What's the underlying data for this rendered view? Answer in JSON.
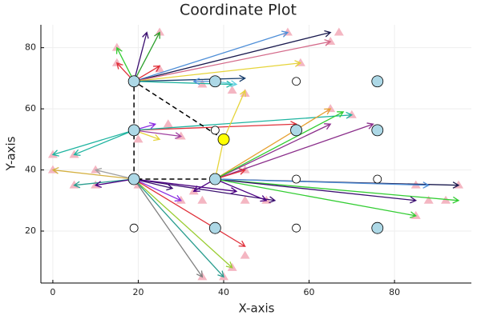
{
  "chart_data": {
    "type": "arrow-plot",
    "title": "Coordinate Plot",
    "x_label": "X-axis",
    "y_label": "Y-axis",
    "xlim": [
      -2.8,
      98
    ],
    "ylim": [
      3,
      87.5
    ],
    "xticks": [
      0,
      20,
      40,
      60,
      80
    ],
    "yticks": [
      20,
      40,
      60,
      80
    ],
    "grid": true,
    "arrows": {
      "x0": [
        19,
        19,
        19,
        19,
        19,
        19,
        19,
        19,
        19,
        19,
        19,
        38,
        38,
        19,
        19,
        19,
        19,
        19,
        19,
        19,
        40,
        40,
        19,
        19,
        19,
        19,
        19,
        19,
        19,
        19,
        19,
        19,
        19,
        19,
        38,
        38,
        38,
        38,
        38,
        38,
        38,
        38,
        38,
        38,
        38,
        38
      ],
      "y0": [
        69,
        69,
        69,
        69,
        69,
        69,
        69,
        69,
        69,
        69,
        69,
        69,
        69,
        53,
        53,
        53,
        53,
        53,
        53,
        53,
        50,
        50,
        37,
        37,
        37,
        37,
        37,
        37,
        37,
        37,
        37,
        37,
        37,
        37,
        37,
        37,
        37,
        37,
        37,
        37,
        37,
        37,
        37,
        37,
        37,
        37
      ],
      "x1": [
        22,
        25,
        15,
        55,
        65,
        65,
        58,
        45,
        42,
        15,
        25,
        33,
        43,
        0,
        5,
        57,
        70,
        24,
        30,
        25,
        45,
        38,
        0,
        5,
        10,
        10,
        45,
        42,
        40,
        35,
        52,
        30,
        28,
        43,
        65,
        65,
        75,
        68,
        45,
        95,
        95,
        85,
        88,
        85,
        50,
        33
      ],
      "y1": [
        85,
        85,
        80,
        85,
        85,
        82,
        75,
        70,
        68,
        75,
        74,
        69,
        68,
        45,
        45,
        55,
        58,
        55,
        51,
        50,
        66,
        37,
        40,
        35,
        35,
        40,
        15,
        8,
        5,
        5,
        30,
        30,
        34,
        33,
        60,
        55,
        55,
        59,
        40,
        35,
        30,
        30,
        35,
        25,
        30,
        33
      ],
      "colors": [
        "#3b0f70",
        "#2ca02c",
        "#32cd32",
        "#4f8fd8",
        "#1a1a4e",
        "#d46a8a",
        "#e6d43a",
        "#163c6b",
        "#1fb4a0",
        "#e0303a",
        "#e0303a",
        "#4f8fd8",
        "#5fd0e0",
        "#1fb4a0",
        "#1fb4a0",
        "#e0303a",
        "#1fb4a0",
        "#8a2be2",
        "#a040a0",
        "#e6d43a",
        "#e6d43a",
        "#e6d43a",
        "#d4b040",
        "#2a9d8f",
        "#4b0082",
        "#a0a0a0",
        "#e0303a",
        "#9acd32",
        "#2a9d8f",
        "#808080",
        "#3b0f70",
        "#8a2be2",
        "#3b0f70",
        "#4b0082",
        "#e6a030",
        "#8b2f8b",
        "#8b2f8b",
        "#32cd32",
        "#e0303a",
        "#1a1a4e",
        "#32cd32",
        "#3b0f70",
        "#4f8fd8",
        "#32cd32",
        "#4b0082",
        "#4b0082"
      ]
    },
    "triangles": {
      "color": "#f4b6c2",
      "x": [
        25,
        15,
        65,
        67,
        58,
        55,
        15,
        25,
        45,
        42,
        35,
        0,
        5,
        20,
        27,
        30,
        0,
        5,
        10,
        10,
        45,
        42,
        35,
        40,
        30,
        35,
        45,
        50,
        85,
        88,
        92,
        95,
        85,
        65,
        70,
        45,
        20,
        33
      ],
      "y": [
        85,
        80,
        82,
        85,
        75,
        85,
        75,
        73,
        65,
        66,
        68,
        45,
        45,
        50,
        55,
        51,
        40,
        35,
        40,
        35,
        12,
        8,
        5,
        5,
        30,
        30,
        30,
        30,
        25,
        30,
        30,
        35,
        35,
        60,
        58,
        40,
        35,
        33
      ]
    },
    "path": {
      "x": [
        40,
        19,
        19,
        38
      ],
      "y": [
        50,
        69,
        37,
        37
      ],
      "color": "#000000"
    },
    "point_groups": [
      {
        "color": "#add8e6",
        "x": [
          19,
          38,
          76,
          19,
          57,
          76,
          19,
          38,
          38,
          76
        ],
        "y": [
          69,
          69,
          69,
          53,
          53,
          53,
          37,
          37,
          21,
          21
        ]
      },
      {
        "color": "#ffffff",
        "x": [
          57,
          38,
          57,
          76,
          19,
          57
        ],
        "y": [
          69,
          53,
          37,
          37,
          21,
          21
        ]
      },
      {
        "color": "#ffff00",
        "x": [
          40
        ],
        "y": [
          50
        ]
      }
    ]
  }
}
